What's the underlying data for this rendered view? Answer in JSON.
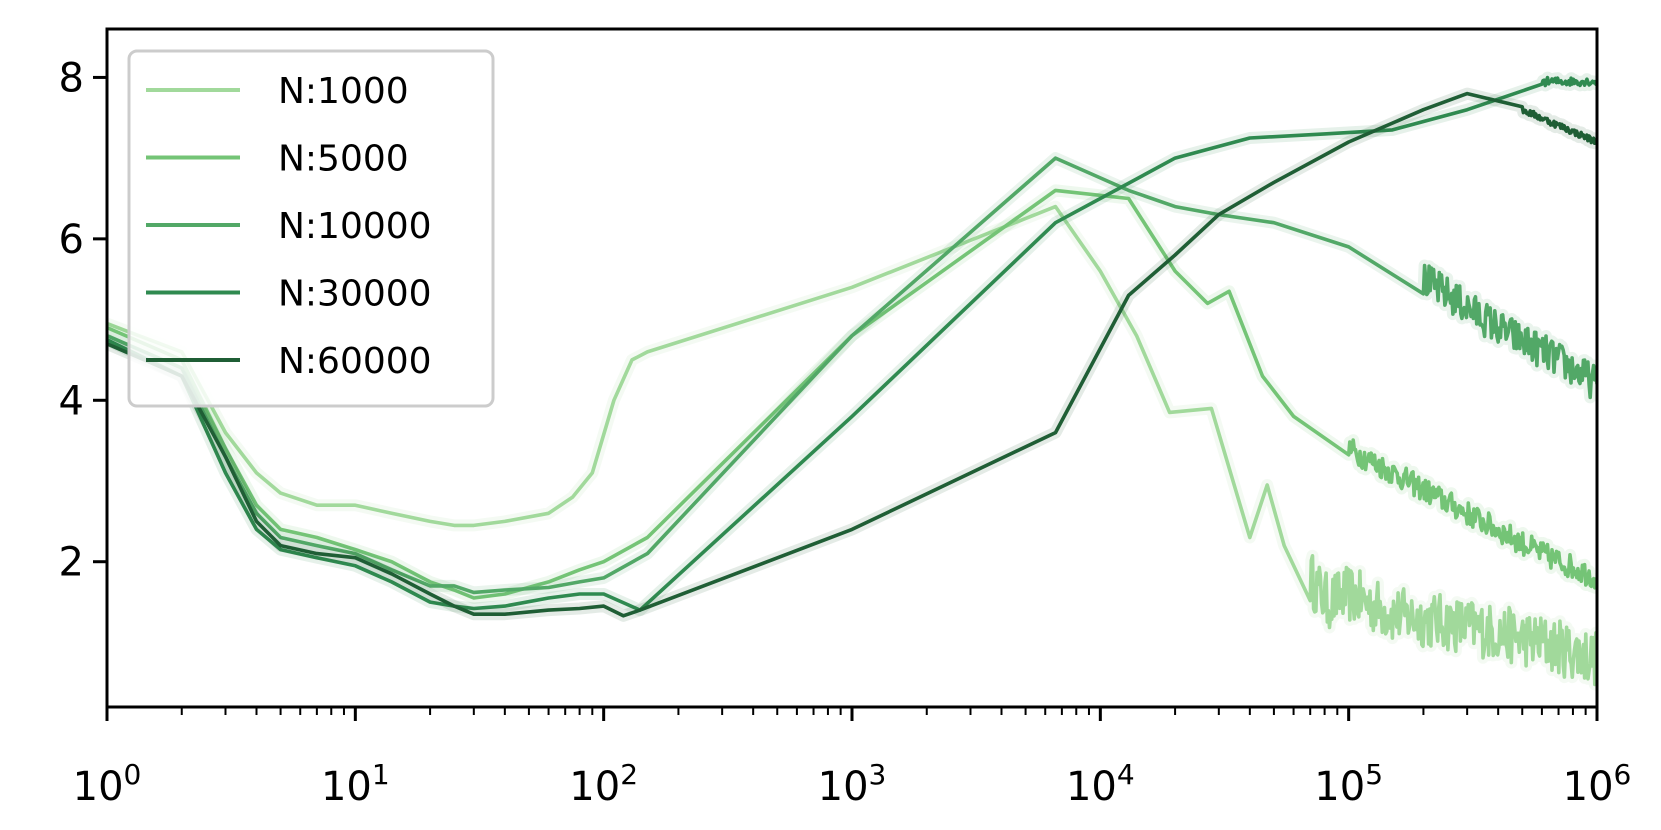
{
  "chart_data": {
    "type": "line",
    "title": "",
    "xlabel": "",
    "ylabel": "",
    "xscale": "log",
    "xlim": [
      1,
      1000000
    ],
    "ylim": [
      0.2,
      8.6
    ],
    "grid": false,
    "legend_position": "upper-left",
    "x_ticks": [
      {
        "value": 1,
        "base": "10",
        "exp": "0"
      },
      {
        "value": 10,
        "base": "10",
        "exp": "1"
      },
      {
        "value": 100,
        "base": "10",
        "exp": "2"
      },
      {
        "value": 1000,
        "base": "10",
        "exp": "3"
      },
      {
        "value": 10000,
        "base": "10",
        "exp": "4"
      },
      {
        "value": 100000,
        "base": "10",
        "exp": "5"
      },
      {
        "value": 1000000,
        "base": "10",
        "exp": "6"
      }
    ],
    "y_ticks": [
      {
        "value": 2,
        "label": "2"
      },
      {
        "value": 4,
        "label": "4"
      },
      {
        "value": 6,
        "label": "6"
      },
      {
        "value": 8,
        "label": "8"
      }
    ],
    "series": [
      {
        "name": "N:1000",
        "color": "#a1d99b",
        "noise_from": 60000,
        "noise_amp": 0.35,
        "points": [
          [
            1,
            4.95
          ],
          [
            2,
            4.6
          ],
          [
            3,
            3.6
          ],
          [
            4,
            3.1
          ],
          [
            5,
            2.85
          ],
          [
            7,
            2.7
          ],
          [
            10,
            2.7
          ],
          [
            14,
            2.6
          ],
          [
            20,
            2.5
          ],
          [
            25,
            2.45
          ],
          [
            30,
            2.45
          ],
          [
            40,
            2.5
          ],
          [
            60,
            2.6
          ],
          [
            75,
            2.8
          ],
          [
            90,
            3.1
          ],
          [
            110,
            4.0
          ],
          [
            130,
            4.5
          ],
          [
            150,
            4.6
          ],
          [
            1000,
            5.4
          ],
          [
            6600,
            6.4
          ],
          [
            10000,
            5.6
          ],
          [
            14000,
            4.8
          ],
          [
            19000,
            3.85
          ],
          [
            28000,
            3.9
          ],
          [
            40000,
            2.3
          ],
          [
            47000,
            2.95
          ],
          [
            55000,
            2.2
          ],
          [
            70000,
            1.8
          ],
          [
            82000,
            1.5
          ],
          [
            100000,
            1.6
          ],
          [
            150000,
            1.35
          ],
          [
            300000,
            1.2
          ],
          [
            600000,
            1.0
          ],
          [
            1000000,
            0.8
          ]
        ]
      },
      {
        "name": "N:5000",
        "color": "#74c476",
        "noise_from": 100000,
        "noise_amp": 0.15,
        "points": [
          [
            1,
            4.9
          ],
          [
            2,
            4.5
          ],
          [
            3,
            3.4
          ],
          [
            4,
            2.7
          ],
          [
            5,
            2.4
          ],
          [
            7,
            2.3
          ],
          [
            10,
            2.15
          ],
          [
            14,
            2.0
          ],
          [
            20,
            1.75
          ],
          [
            25,
            1.65
          ],
          [
            30,
            1.55
          ],
          [
            40,
            1.6
          ],
          [
            60,
            1.75
          ],
          [
            80,
            1.9
          ],
          [
            100,
            2.0
          ],
          [
            150,
            2.3
          ],
          [
            1000,
            4.8
          ],
          [
            6600,
            6.6
          ],
          [
            13000,
            6.5
          ],
          [
            20000,
            5.6
          ],
          [
            27000,
            5.2
          ],
          [
            33000,
            5.35
          ],
          [
            45000,
            4.3
          ],
          [
            60000,
            3.8
          ],
          [
            100000,
            3.4
          ],
          [
            300000,
            2.6
          ],
          [
            600000,
            2.1
          ],
          [
            1000000,
            1.8
          ]
        ]
      },
      {
        "name": "N:10000",
        "color": "#52a867",
        "noise_from": 200000,
        "noise_amp": 0.22,
        "points": [
          [
            1,
            4.8
          ],
          [
            2,
            4.4
          ],
          [
            3,
            3.3
          ],
          [
            4,
            2.6
          ],
          [
            5,
            2.3
          ],
          [
            7,
            2.2
          ],
          [
            10,
            2.1
          ],
          [
            14,
            1.9
          ],
          [
            20,
            1.7
          ],
          [
            25,
            1.7
          ],
          [
            30,
            1.62
          ],
          [
            40,
            1.65
          ],
          [
            60,
            1.68
          ],
          [
            80,
            1.75
          ],
          [
            100,
            1.8
          ],
          [
            150,
            2.1
          ],
          [
            1000,
            4.8
          ],
          [
            6600,
            7.0
          ],
          [
            13000,
            6.6
          ],
          [
            20000,
            6.4
          ],
          [
            30000,
            6.3
          ],
          [
            50000,
            6.2
          ],
          [
            100000,
            5.9
          ],
          [
            200000,
            5.5
          ],
          [
            400000,
            4.9
          ],
          [
            700000,
            4.5
          ],
          [
            1000000,
            4.2
          ]
        ]
      },
      {
        "name": "N:30000",
        "color": "#2f8a50",
        "noise_from": 400000,
        "noise_amp": 0.05,
        "points": [
          [
            1,
            4.75
          ],
          [
            2,
            4.3
          ],
          [
            3,
            3.1
          ],
          [
            4,
            2.4
          ],
          [
            5,
            2.15
          ],
          [
            7,
            2.05
          ],
          [
            10,
            1.95
          ],
          [
            14,
            1.75
          ],
          [
            20,
            1.5
          ],
          [
            25,
            1.45
          ],
          [
            30,
            1.42
          ],
          [
            40,
            1.45
          ],
          [
            60,
            1.55
          ],
          [
            80,
            1.6
          ],
          [
            100,
            1.6
          ],
          [
            140,
            1.4
          ],
          [
            1000,
            3.8
          ],
          [
            6600,
            6.2
          ],
          [
            20000,
            7.0
          ],
          [
            40000,
            7.25
          ],
          [
            80000,
            7.3
          ],
          [
            150000,
            7.35
          ],
          [
            300000,
            7.6
          ],
          [
            600000,
            7.95
          ],
          [
            1000000,
            7.95
          ]
        ]
      },
      {
        "name": "N:60000",
        "color": "#1f5e35",
        "noise_from": 500000,
        "noise_amp": 0.04,
        "points": [
          [
            1,
            4.7
          ],
          [
            2,
            4.3
          ],
          [
            3,
            3.3
          ],
          [
            4,
            2.5
          ],
          [
            5,
            2.2
          ],
          [
            7,
            2.1
          ],
          [
            10,
            2.05
          ],
          [
            14,
            1.85
          ],
          [
            20,
            1.6
          ],
          [
            25,
            1.45
          ],
          [
            30,
            1.35
          ],
          [
            40,
            1.35
          ],
          [
            60,
            1.4
          ],
          [
            80,
            1.42
          ],
          [
            100,
            1.45
          ],
          [
            120,
            1.33
          ],
          [
            140,
            1.4
          ],
          [
            1000,
            2.4
          ],
          [
            6600,
            3.6
          ],
          [
            13000,
            5.3
          ],
          [
            20000,
            5.8
          ],
          [
            30000,
            6.3
          ],
          [
            50000,
            6.7
          ],
          [
            100000,
            7.2
          ],
          [
            200000,
            7.6
          ],
          [
            300000,
            7.8
          ],
          [
            500000,
            7.6
          ],
          [
            1000000,
            7.2
          ]
        ]
      }
    ]
  }
}
